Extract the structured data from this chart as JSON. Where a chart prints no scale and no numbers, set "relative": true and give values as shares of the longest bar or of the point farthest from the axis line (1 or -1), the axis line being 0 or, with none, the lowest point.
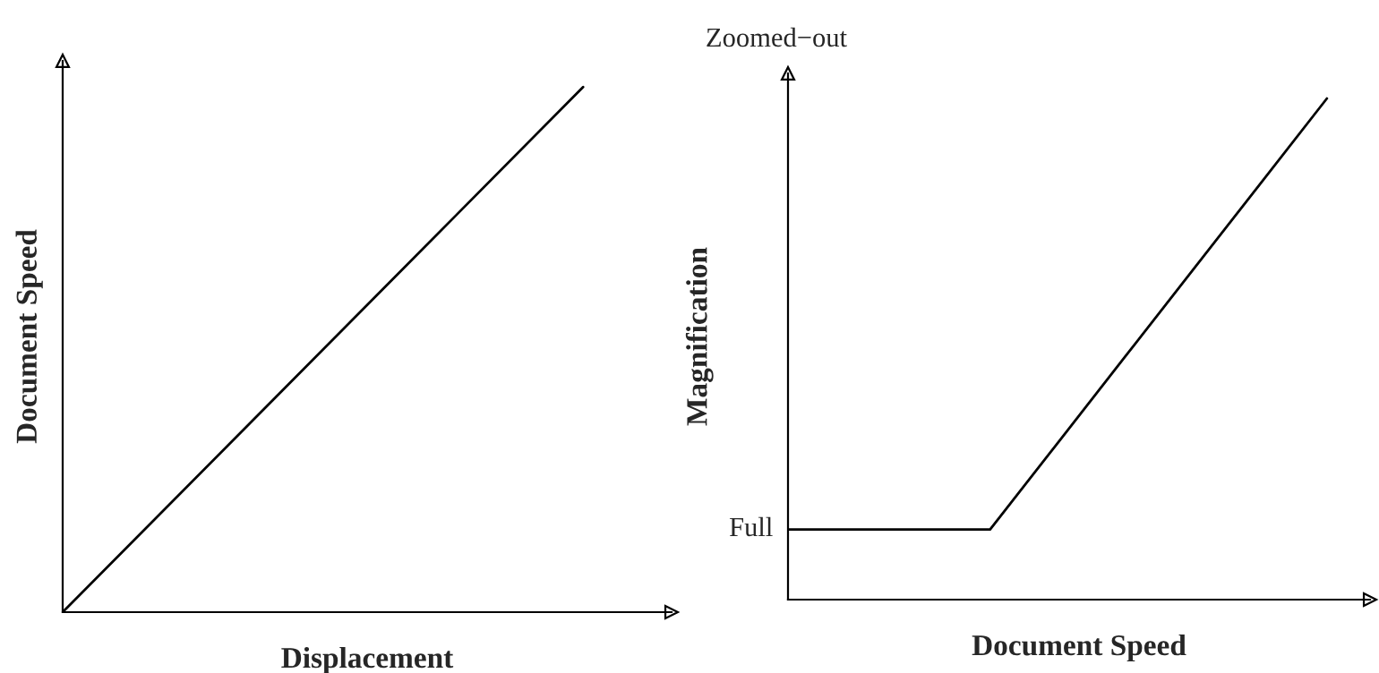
{
  "chart_data": [
    {
      "type": "line",
      "relative": true,
      "xlabel": "Displacement",
      "ylabel": "Document Speed",
      "categories": [
        null,
        null
      ],
      "series": [
        {
          "color": "#000000",
          "values": [
            0,
            1
          ]
        }
      ],
      "grid": false,
      "legend": false,
      "tick_labels": false
    },
    {
      "type": "line",
      "relative": true,
      "xlabel": "Document Speed",
      "ylabel": "Magnification",
      "categories": [
        null,
        null,
        null,
        null,
        null,
        null,
        null,
        null,
        null
      ],
      "series": [
        {
          "color": "#000000",
          "values": [
            0.14,
            0.14,
            0.14,
            0.14,
            0.312,
            0.484,
            0.656,
            0.828,
            1
          ]
        }
      ],
      "grid": false,
      "legend": false,
      "tick_labels": false,
      "annotations": [
        "Full",
        "Zoomed−out"
      ]
    }
  ]
}
